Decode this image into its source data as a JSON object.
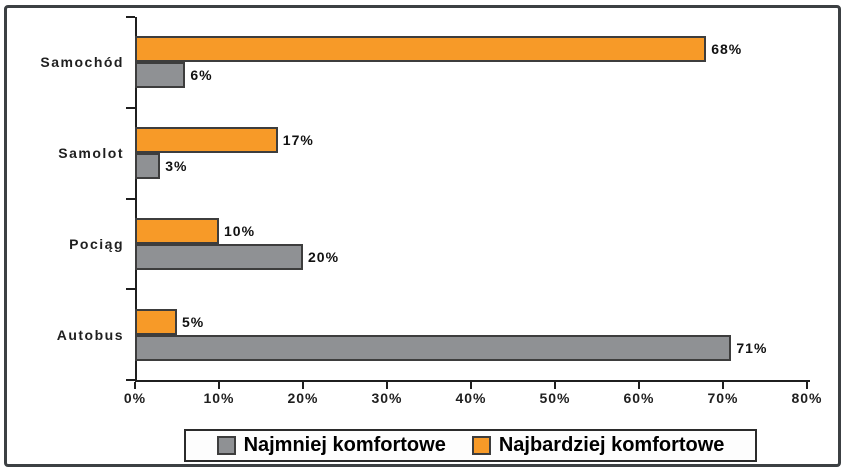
{
  "chart_data": {
    "type": "bar",
    "orientation": "horizontal",
    "categories": [
      "Samochód",
      "Samolot",
      "Pociąg",
      "Autobus"
    ],
    "series": [
      {
        "name": "Najbardziej komfortowe",
        "color": "#F79A28",
        "values": [
          68,
          17,
          10,
          5
        ]
      },
      {
        "name": "Najmniej komfortowe",
        "color": "#8F9194",
        "values": [
          6,
          3,
          20,
          71
        ]
      }
    ],
    "value_label_format": "{v}%",
    "x_tick_labels": [
      "0%",
      "10%",
      "20%",
      "30%",
      "40%",
      "50%",
      "60%",
      "70%",
      "80%"
    ],
    "xlim": [
      0,
      80
    ],
    "grid": false,
    "legend_position": "bottom",
    "legend": [
      {
        "label": "Najmniej komfortowe",
        "color": "#8F9194"
      },
      {
        "label": "Najbardziej komfortowe",
        "color": "#F79A28"
      }
    ]
  },
  "colors": {
    "bar_border": "#3D3D3D",
    "axis": "#1F1F1F",
    "text": "#1F1F1F",
    "frame_border": "#3C4043",
    "background": "#FFFFFF"
  }
}
